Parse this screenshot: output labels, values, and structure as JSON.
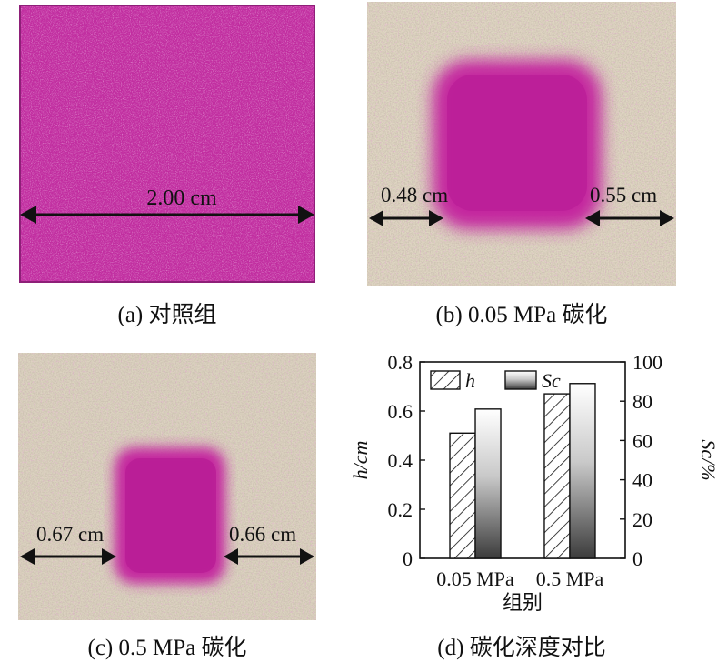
{
  "panels": {
    "a": {
      "caption": "(a) 对照组",
      "measure": "2.00 cm"
    },
    "b": {
      "caption": "(b) 0.05 MPa 碳化",
      "left_measure": "0.48 cm",
      "right_measure": "0.55 cm"
    },
    "c": {
      "caption": "(c) 0.5 MPa 碳化",
      "left_measure": "0.67 cm",
      "right_measure": "0.66 cm"
    },
    "d": {
      "caption": "(d) 碳化深度对比"
    }
  },
  "colors": {
    "magenta": "#c4259f",
    "magenta_dark": "#a8158a",
    "concrete": "#d9cfb9"
  },
  "chart_data": {
    "type": "bar",
    "categories": [
      "0.05 MPa",
      "0.5 MPa"
    ],
    "xlabel": "组别",
    "ylabel_left": "h/cm",
    "ylabel_right": "Sc/%",
    "ylim_left": [
      0,
      0.8
    ],
    "ylim_right": [
      0,
      100
    ],
    "yticks_left": [
      "0",
      "0.2",
      "0.4",
      "0.6",
      "0.8"
    ],
    "yticks_right": [
      "0",
      "20",
      "40",
      "60",
      "80",
      "100"
    ],
    "legend_position": "top",
    "series": [
      {
        "name": "h",
        "axis": "left",
        "values": [
          0.51,
          0.67
        ],
        "style": "hatched"
      },
      {
        "name": "Sc",
        "axis": "right",
        "values": [
          76,
          89
        ],
        "style": "gradient"
      }
    ]
  }
}
